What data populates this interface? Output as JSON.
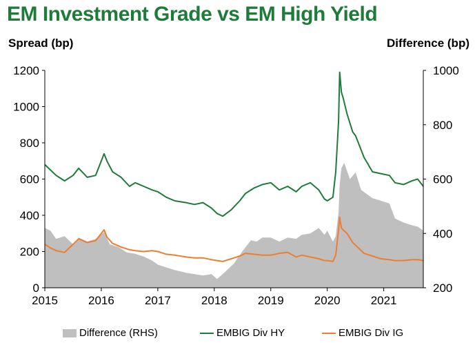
{
  "title": "EM Investment Grade vs EM High Yield",
  "chart_data": {
    "type": "line",
    "title": "EM Investment Grade vs EM High Yield",
    "ylabel": "Spread (bp)",
    "y2label": "Difference (bp)",
    "ylim": [
      0,
      1200
    ],
    "y2lim": [
      200,
      1000
    ],
    "yticks": [
      "0",
      "200",
      "400",
      "600",
      "800",
      "1000",
      "1200"
    ],
    "y2ticks": [
      "200",
      "400",
      "600",
      "800",
      "1000"
    ],
    "xlim": [
      2015,
      2021.7
    ],
    "xticks": [
      "2015",
      "2016",
      "2017",
      "2018",
      "2019",
      "2020",
      "2021"
    ],
    "grid": false,
    "legend_position": "bottom",
    "series": [
      {
        "name": "Difference (RHS)",
        "axis": "right",
        "style": "area",
        "color": "#bfbfbf",
        "x": [
          2015.0,
          2015.1,
          2015.2,
          2015.35,
          2015.5,
          2015.6,
          2015.75,
          2015.9,
          2016.05,
          2016.15,
          2016.3,
          2016.45,
          2016.6,
          2016.75,
          2016.9,
          2017.0,
          2017.15,
          2017.3,
          2017.5,
          2017.65,
          2017.8,
          2017.95,
          2018.05,
          2018.2,
          2018.35,
          2018.5,
          2018.65,
          2018.75,
          2018.85,
          2019.0,
          2019.15,
          2019.3,
          2019.45,
          2019.55,
          2019.7,
          2019.85,
          2019.95,
          2020.0,
          2020.1,
          2020.15,
          2020.2,
          2020.22,
          2020.25,
          2020.3,
          2020.4,
          2020.5,
          2020.6,
          2020.7,
          2020.8,
          2020.95,
          2021.1,
          2021.2,
          2021.35,
          2021.5,
          2021.6,
          2021.7
        ],
        "values": [
          420,
          410,
          380,
          390,
          360,
          385,
          370,
          380,
          405,
          360,
          350,
          330,
          325,
          315,
          300,
          285,
          275,
          265,
          255,
          250,
          245,
          250,
          232,
          260,
          290,
          335,
          375,
          370,
          385,
          385,
          370,
          385,
          380,
          395,
          400,
          420,
          395,
          410,
          370,
          390,
          480,
          580,
          640,
          660,
          600,
          625,
          560,
          545,
          530,
          520,
          510,
          455,
          440,
          430,
          425,
          410
        ]
      },
      {
        "name": "EMBIG Div HY",
        "axis": "left",
        "style": "line",
        "color": "#1e7b3a",
        "x": [
          2015.0,
          2015.1,
          2015.2,
          2015.35,
          2015.5,
          2015.6,
          2015.75,
          2015.9,
          2016.05,
          2016.1,
          2016.2,
          2016.35,
          2016.5,
          2016.6,
          2016.75,
          2016.9,
          2017.0,
          2017.15,
          2017.3,
          2017.5,
          2017.65,
          2017.8,
          2017.95,
          2018.05,
          2018.15,
          2018.3,
          2018.45,
          2018.55,
          2018.7,
          2018.85,
          2019.0,
          2019.15,
          2019.3,
          2019.45,
          2019.55,
          2019.7,
          2019.85,
          2019.95,
          2020.0,
          2020.1,
          2020.15,
          2020.2,
          2020.22,
          2020.25,
          2020.28,
          2020.35,
          2020.45,
          2020.5,
          2020.55,
          2020.65,
          2020.8,
          2020.95,
          2021.1,
          2021.2,
          2021.35,
          2021.5,
          2021.6,
          2021.7
        ],
        "values": [
          680,
          650,
          620,
          590,
          620,
          660,
          610,
          620,
          740,
          700,
          640,
          610,
          560,
          580,
          560,
          540,
          530,
          500,
          480,
          470,
          460,
          470,
          440,
          410,
          395,
          430,
          480,
          520,
          550,
          570,
          580,
          540,
          560,
          530,
          560,
          580,
          540,
          490,
          480,
          500,
          640,
          920,
          1190,
          1080,
          1050,
          960,
          860,
          840,
          800,
          720,
          640,
          630,
          620,
          580,
          570,
          590,
          600,
          560
        ]
      },
      {
        "name": "EMBIG Div IG",
        "axis": "left",
        "style": "line",
        "color": "#ed7d31",
        "x": [
          2015.0,
          2015.1,
          2015.2,
          2015.35,
          2015.5,
          2015.6,
          2015.75,
          2015.9,
          2016.05,
          2016.1,
          2016.2,
          2016.35,
          2016.5,
          2016.6,
          2016.75,
          2016.9,
          2017.0,
          2017.15,
          2017.3,
          2017.5,
          2017.65,
          2017.8,
          2017.95,
          2018.05,
          2018.15,
          2018.3,
          2018.45,
          2018.55,
          2018.7,
          2018.85,
          2019.0,
          2019.15,
          2019.3,
          2019.45,
          2019.55,
          2019.7,
          2019.85,
          2019.95,
          2020.0,
          2020.1,
          2020.15,
          2020.2,
          2020.22,
          2020.25,
          2020.28,
          2020.35,
          2020.45,
          2020.5,
          2020.55,
          2020.65,
          2020.8,
          2020.95,
          2021.1,
          2021.2,
          2021.35,
          2021.5,
          2021.6,
          2021.7
        ],
        "values": [
          240,
          220,
          205,
          195,
          240,
          270,
          250,
          260,
          320,
          280,
          245,
          225,
          210,
          205,
          200,
          205,
          200,
          185,
          180,
          170,
          165,
          165,
          155,
          150,
          145,
          160,
          175,
          190,
          185,
          180,
          180,
          190,
          195,
          170,
          180,
          170,
          160,
          150,
          150,
          145,
          180,
          320,
          390,
          330,
          320,
          300,
          250,
          235,
          220,
          190,
          175,
          160,
          155,
          150,
          150,
          155,
          155,
          150
        ]
      }
    ]
  }
}
